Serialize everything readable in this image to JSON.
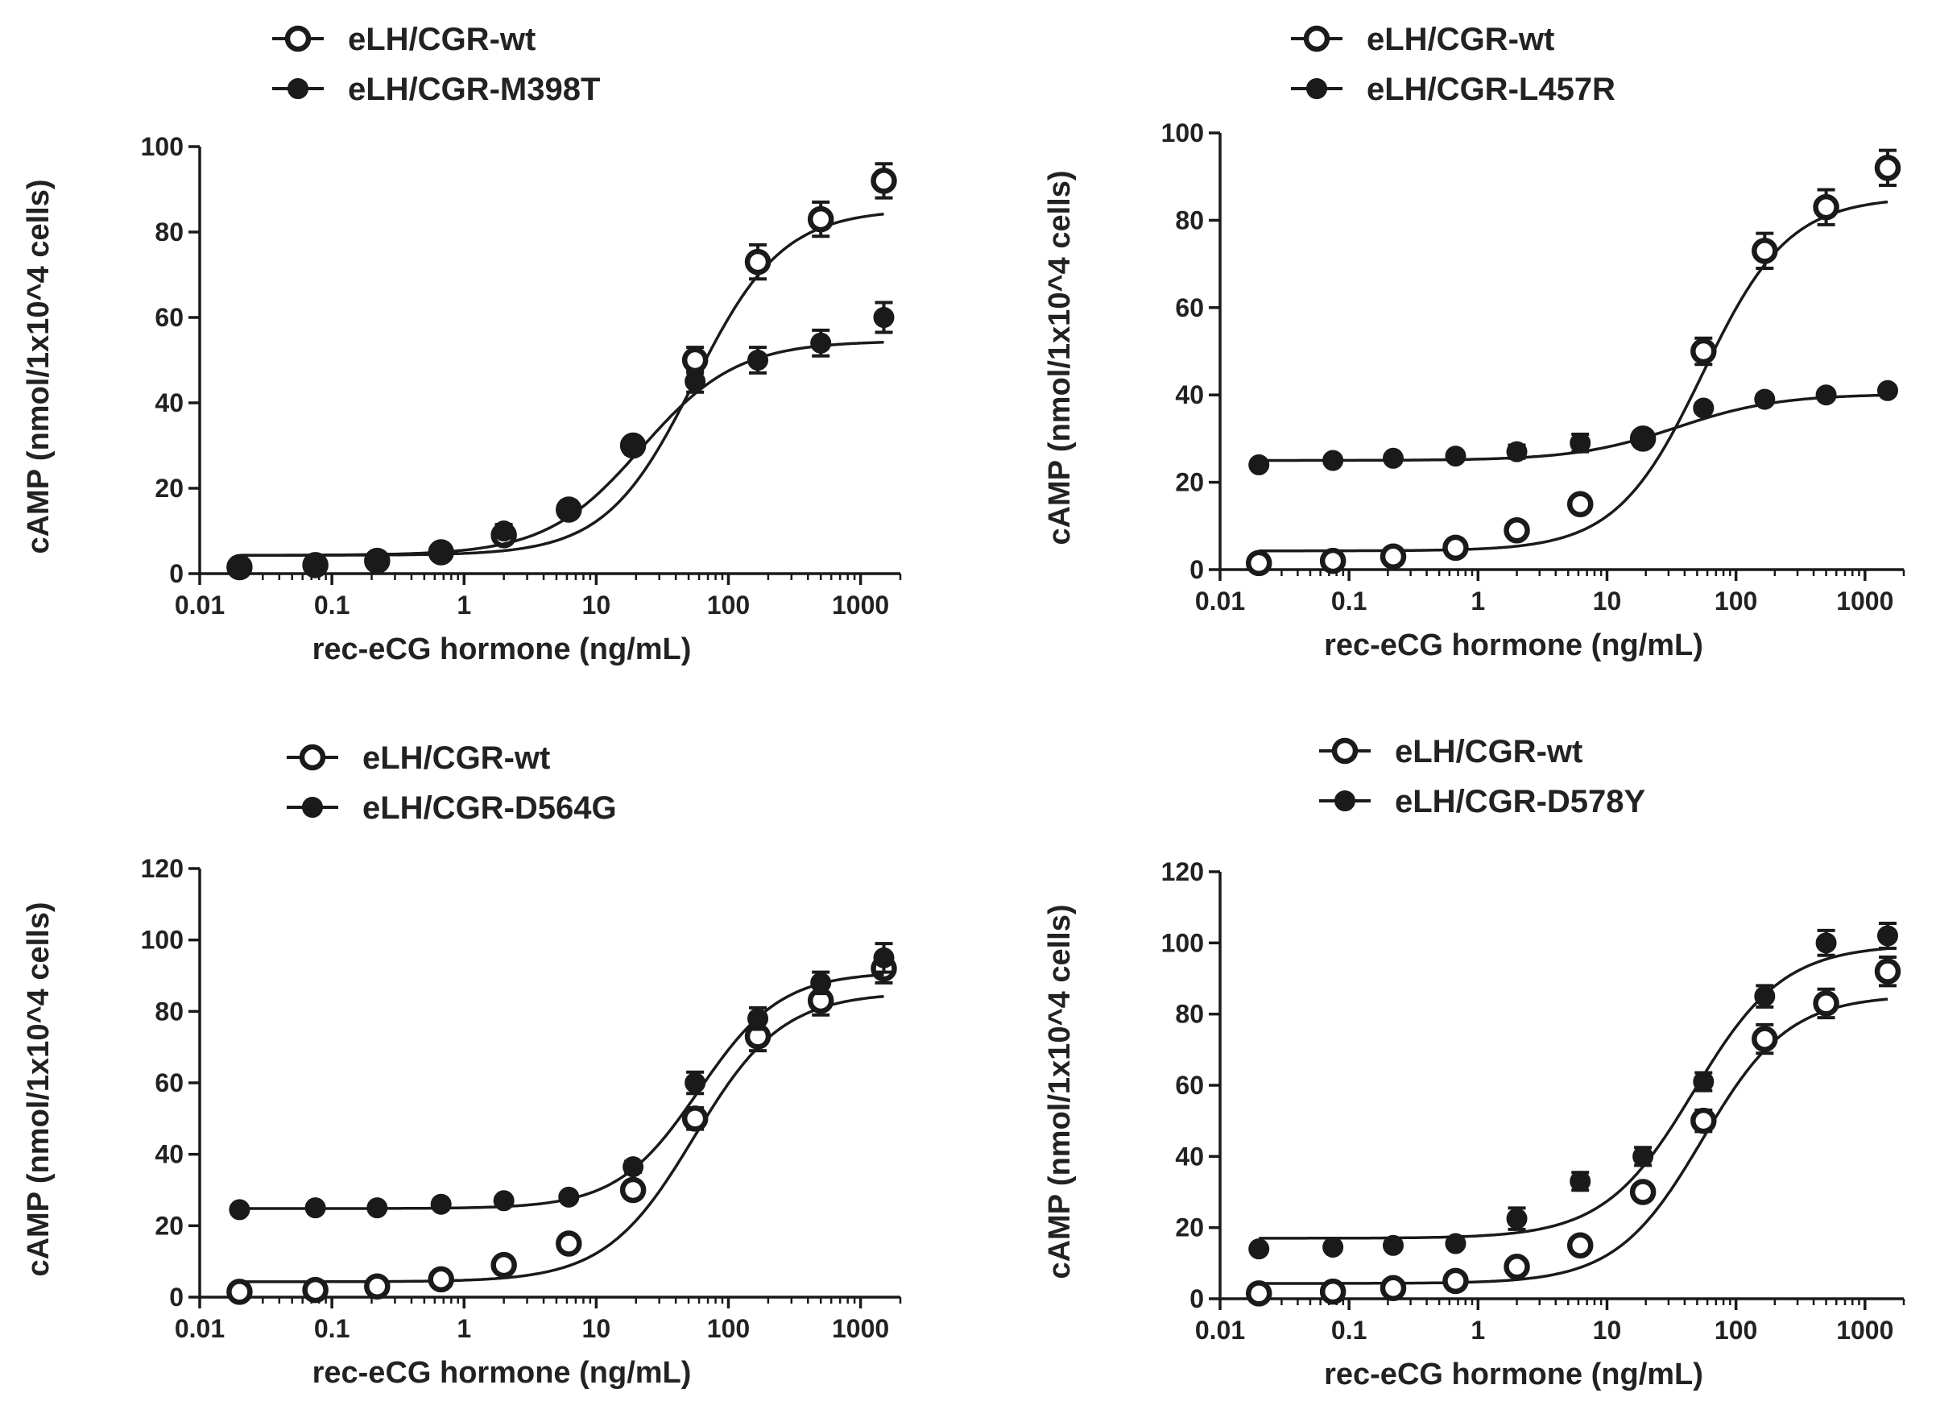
{
  "chart_data": [
    {
      "type": "scatter",
      "title": "",
      "xlabel": "rec-eCG hormone (ng/mL)",
      "ylabel": "cAMP (nmol/1x10^4 cells)",
      "xscale": "log",
      "xlim": [
        0.01,
        2000
      ],
      "ylim": [
        0,
        100
      ],
      "xticks": [
        0.01,
        0.1,
        1,
        10,
        100,
        1000
      ],
      "xtick_labels": [
        "0.01",
        "0.1",
        "1",
        "10",
        "100",
        "1000"
      ],
      "yticks": [
        0,
        20,
        40,
        60,
        80,
        100
      ],
      "ytick_labels": [
        "0",
        "20",
        "40",
        "60",
        "80",
        "100"
      ],
      "legend_position": "top-left",
      "x": [
        0.02,
        0.075,
        0.22,
        0.67,
        2,
        6.2,
        19,
        56,
        167,
        500,
        1500
      ],
      "series": [
        {
          "name": "eLH/CGR-wt",
          "marker": "open-circle",
          "values": [
            1.5,
            2,
            3,
            5,
            9,
            15,
            30,
            50,
            73,
            83,
            92
          ],
          "errors": [
            0.8,
            0.8,
            1,
            1,
            1.5,
            1.5,
            1.5,
            3,
            4,
            4,
            4
          ],
          "fit": {
            "bottom": 4.3,
            "top": 85.3,
            "ec50": 55,
            "hill": 1.3
          }
        },
        {
          "name": "eLH/CGR-M398T",
          "marker": "filled-circle",
          "values": [
            1.5,
            2.5,
            3.5,
            5.5,
            10,
            15.5,
            29.5,
            45,
            50,
            54,
            60
          ],
          "errors": [
            0.8,
            0.8,
            1,
            1,
            1.5,
            1.5,
            1.5,
            2.5,
            3,
            3,
            3.5
          ],
          "fit": {
            "bottom": 4.3,
            "top": 54.5,
            "ec50": 22,
            "hill": 1.2
          }
        }
      ]
    },
    {
      "type": "scatter",
      "title": "",
      "xlabel": "rec-eCG hormone (ng/mL)",
      "ylabel": "cAMP (nmol/1x10^4 cells)",
      "xscale": "log",
      "xlim": [
        0.01,
        2000
      ],
      "ylim": [
        0,
        100
      ],
      "xticks": [
        0.01,
        0.1,
        1,
        10,
        100,
        1000
      ],
      "xtick_labels": [
        "0.01",
        "0.1",
        "1",
        "10",
        "100",
        "1000"
      ],
      "yticks": [
        0,
        20,
        40,
        60,
        80,
        100
      ],
      "ytick_labels": [
        "0",
        "20",
        "40",
        "60",
        "80",
        "100"
      ],
      "legend_position": "top-right",
      "x": [
        0.02,
        0.075,
        0.22,
        0.67,
        2,
        6.2,
        19,
        56,
        167,
        500,
        1500
      ],
      "series": [
        {
          "name": "eLH/CGR-wt",
          "marker": "open-circle",
          "values": [
            1.5,
            2,
            3,
            5,
            9,
            15,
            30,
            50,
            73,
            83,
            92
          ],
          "errors": [
            0.8,
            0.8,
            1,
            1,
            1.5,
            1.5,
            1.5,
            3,
            4,
            4,
            4
          ],
          "fit": {
            "bottom": 4.3,
            "top": 85.3,
            "ec50": 55,
            "hill": 1.3
          }
        },
        {
          "name": "eLH/CGR-L457R",
          "marker": "filled-circle",
          "values": [
            24,
            25,
            25.5,
            26,
            27,
            29,
            30,
            37,
            39,
            40,
            41
          ],
          "errors": [
            0.8,
            0.8,
            0.8,
            0.8,
            1.5,
            2,
            1.5,
            1,
            1,
            1,
            1
          ],
          "fit": {
            "bottom": 25,
            "top": 40.2,
            "ec50": 35,
            "hill": 1.1
          }
        }
      ]
    },
    {
      "type": "scatter",
      "title": "",
      "xlabel": "rec-eCG hormone (ng/mL)",
      "ylabel": "cAMP (nmol/1x10^4 cells)",
      "xscale": "log",
      "xlim": [
        0.01,
        2000
      ],
      "ylim": [
        0,
        120
      ],
      "xticks": [
        0.01,
        0.1,
        1,
        10,
        100,
        1000
      ],
      "xtick_labels": [
        "0.01",
        "0.1",
        "1",
        "10",
        "100",
        "1000"
      ],
      "yticks": [
        0,
        20,
        40,
        60,
        80,
        100,
        120
      ],
      "ytick_labels": [
        "0",
        "20",
        "40",
        "60",
        "80",
        "100",
        "120"
      ],
      "legend_position": "top-left",
      "x": [
        0.02,
        0.075,
        0.22,
        0.67,
        2,
        6.2,
        19,
        56,
        167,
        500,
        1500
      ],
      "series": [
        {
          "name": "eLH/CGR-wt",
          "marker": "open-circle",
          "values": [
            1.5,
            2,
            3,
            5,
            9,
            15,
            30,
            50,
            73,
            83,
            92
          ],
          "errors": [
            0.8,
            0.8,
            1,
            1,
            1.5,
            1.5,
            1.5,
            3,
            4,
            4,
            4
          ],
          "fit": {
            "bottom": 4.3,
            "top": 85.3,
            "ec50": 55,
            "hill": 1.3
          }
        },
        {
          "name": "eLH/CGR-D564G",
          "marker": "filled-circle",
          "values": [
            24.5,
            25,
            25,
            26,
            27,
            28,
            36.5,
            60,
            78,
            88,
            95
          ],
          "errors": [
            0.8,
            0.8,
            0.8,
            0.8,
            1,
            1,
            1.5,
            3,
            3,
            3,
            4
          ],
          "fit": {
            "bottom": 24.8,
            "top": 91,
            "ec50": 60,
            "hill": 1.4
          }
        }
      ]
    },
    {
      "type": "scatter",
      "title": "",
      "xlabel": "rec-eCG hormone (ng/mL)",
      "ylabel": "cAMP (nmol/1x10^4 cells)",
      "xscale": "log",
      "xlim": [
        0.01,
        2000
      ],
      "ylim": [
        0,
        120
      ],
      "xticks": [
        0.01,
        0.1,
        1,
        10,
        100,
        1000
      ],
      "xtick_labels": [
        "0.01",
        "0.1",
        "1",
        "10",
        "100",
        "1000"
      ],
      "yticks": [
        0,
        20,
        40,
        60,
        80,
        100,
        120
      ],
      "ytick_labels": [
        "0",
        "20",
        "40",
        "60",
        "80",
        "100",
        "120"
      ],
      "legend_position": "top-center",
      "x": [
        0.02,
        0.075,
        0.22,
        0.67,
        2,
        6.2,
        19,
        56,
        167,
        500,
        1500
      ],
      "series": [
        {
          "name": "eLH/CGR-wt",
          "marker": "open-circle",
          "values": [
            1.5,
            2,
            3,
            5,
            9,
            15,
            30,
            50,
            73,
            83,
            92
          ],
          "errors": [
            0.8,
            0.8,
            1,
            1,
            1.5,
            1.5,
            1.5,
            3,
            4,
            4,
            4
          ],
          "fit": {
            "bottom": 4.3,
            "top": 85.3,
            "ec50": 55,
            "hill": 1.3
          }
        },
        {
          "name": "eLH/CGR-D578Y",
          "marker": "filled-circle",
          "values": [
            14,
            14.5,
            15,
            15.5,
            22.5,
            33,
            40,
            61,
            85,
            100,
            102
          ],
          "errors": [
            0.8,
            0.8,
            0.8,
            0.8,
            3,
            2.5,
            2.5,
            2.5,
            3,
            3.5,
            3.5
          ],
          "fit": {
            "bottom": 17,
            "top": 99.5,
            "ec50": 47,
            "hill": 1.25
          }
        }
      ]
    }
  ]
}
